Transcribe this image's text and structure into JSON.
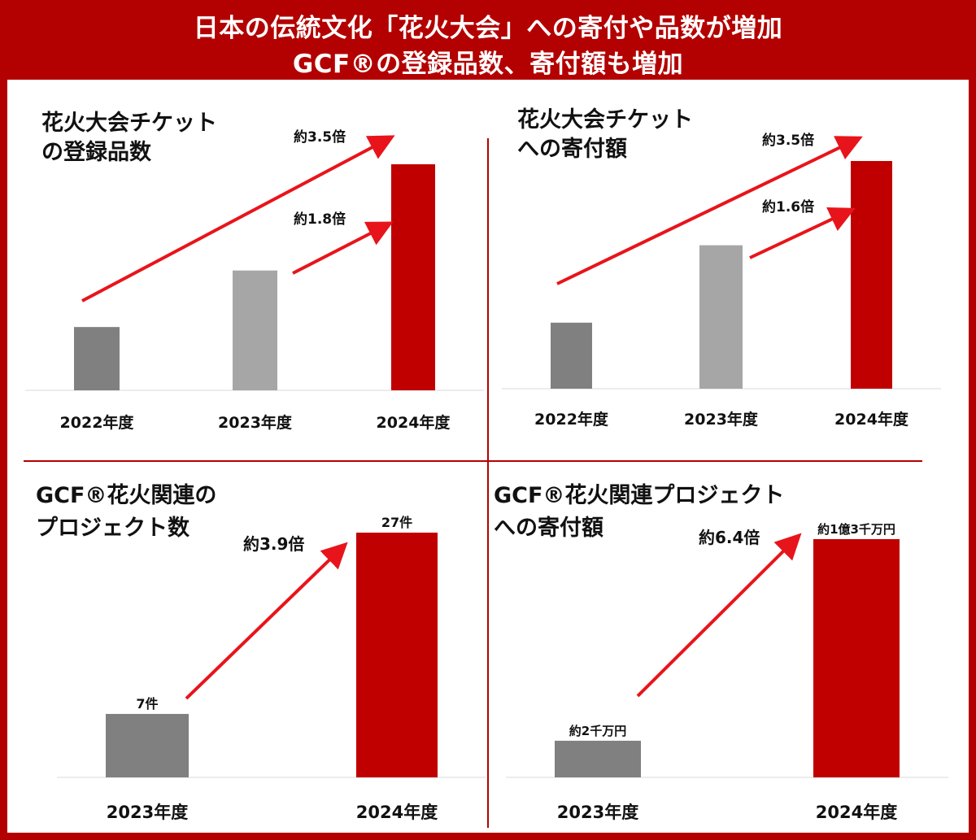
{
  "header": {
    "line1": "日本の伝統文化「花火大会」への寄付や品数が増加",
    "line2": "GCF®の登録品数、寄付額も増加"
  },
  "colors": {
    "brand_red": "#b30000",
    "bar_dark_gray": "#808080",
    "bar_light_gray": "#a6a6a6",
    "bar_red": "#c00000",
    "arrow_red": "#e8141b"
  },
  "chart_data": [
    {
      "type": "bar",
      "title_lines": [
        "花火大会チケット",
        "の登録品数"
      ],
      "categories": [
        "2022年度",
        "2023年度",
        "2024年度"
      ],
      "values": [
        28,
        53,
        100
      ],
      "value_labels": [
        "",
        "",
        ""
      ],
      "bar_colors": [
        "#808080",
        "#a6a6a6",
        "#c00000"
      ],
      "ylim": [
        0,
        100
      ],
      "arrows": [
        {
          "label": "約3.5倍",
          "from_category": 0,
          "to_category": 2
        },
        {
          "label": "約1.8倍",
          "from_category": 1,
          "to_category": 2
        }
      ],
      "xlabel": "",
      "ylabel": ""
    },
    {
      "type": "bar",
      "title_lines": [
        "花火大会チケット",
        "への寄付額"
      ],
      "categories": [
        "2022年度",
        "2023年度",
        "2024年度"
      ],
      "values": [
        29,
        63,
        100
      ],
      "value_labels": [
        "",
        "",
        ""
      ],
      "bar_colors": [
        "#808080",
        "#a6a6a6",
        "#c00000"
      ],
      "ylim": [
        0,
        100
      ],
      "arrows": [
        {
          "label": "約3.5倍",
          "from_category": 0,
          "to_category": 2
        },
        {
          "label": "約1.6倍",
          "from_category": 1,
          "to_category": 2
        }
      ],
      "xlabel": "",
      "ylabel": ""
    },
    {
      "type": "bar",
      "title_lines": [
        "GCF®花火関連の",
        "プロジェクト数"
      ],
      "categories": [
        "2023年度",
        "2024年度"
      ],
      "values": [
        7,
        27
      ],
      "value_labels": [
        "7件",
        "27件"
      ],
      "bar_colors": [
        "#808080",
        "#c00000"
      ],
      "ylim": [
        0,
        27
      ],
      "arrows": [
        {
          "label": "約3.9倍",
          "from_category": 0,
          "to_category": 1
        }
      ],
      "xlabel": "",
      "ylabel": ""
    },
    {
      "type": "bar",
      "title_lines": [
        "GCF®花火関連プロジェクト",
        "への寄付額"
      ],
      "categories": [
        "2023年度",
        "2024年度"
      ],
      "values": [
        2000,
        13000
      ],
      "value_labels": [
        "約2千万円",
        "約1億3千万円"
      ],
      "bar_colors": [
        "#808080",
        "#c00000"
      ],
      "ylim": [
        0,
        13000
      ],
      "arrows": [
        {
          "label": "約6.4倍",
          "from_category": 0,
          "to_category": 1
        }
      ],
      "xlabel": "",
      "ylabel": ""
    }
  ]
}
